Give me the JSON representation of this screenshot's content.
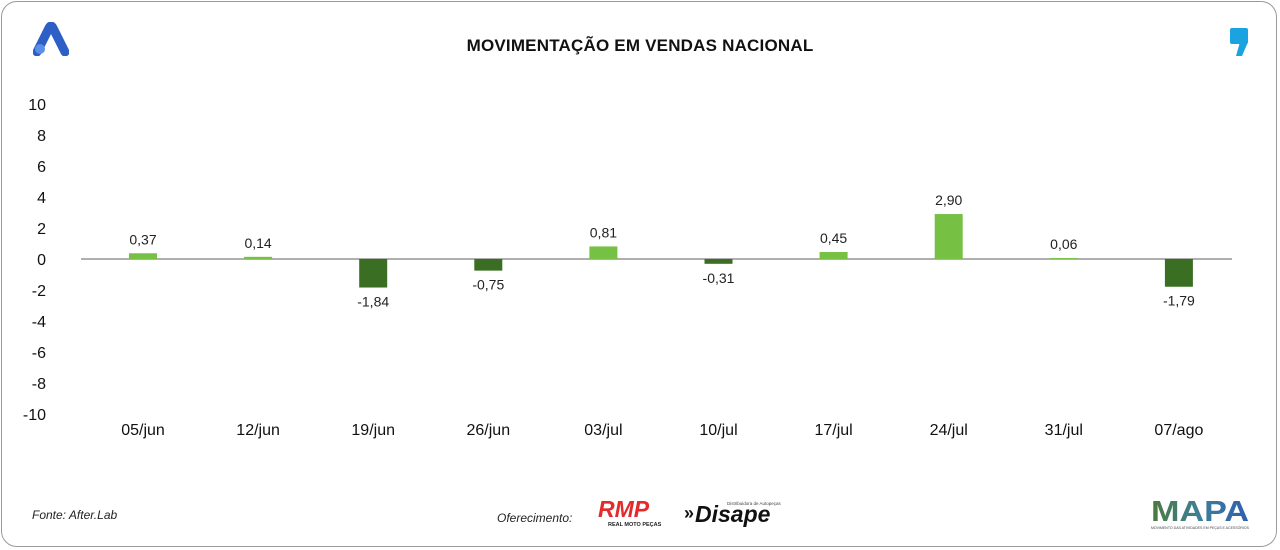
{
  "title": "MOVIMENTAÇÃO EM VENDAS NACIONAL",
  "source": "Fonte: After.Lab",
  "sponsor_label": "Oferecimento:",
  "logos": {
    "rmp": {
      "text": "RMP",
      "subtext": "REAL MOTO PEÇAS",
      "color": "#e32b2b"
    },
    "disape": {
      "text": "Disape",
      "subtext": "Distribuidora de Autopeças",
      "prefix": "»"
    },
    "mapa": {
      "text": "MAPA",
      "subtext": "MOVIMENTO DAS ATIVIDADES EM PEÇAS E ACESSÓRIOS"
    }
  },
  "colors": {
    "positive": "#76c043",
    "negative": "#3a6e22",
    "zero_line": "#7f7f7f",
    "brand_blue": "#2d5fc7",
    "comma_blue": "#1aa3e0"
  },
  "chart_data": {
    "type": "bar",
    "categories": [
      "05/jun",
      "12/jun",
      "19/jun",
      "26/jun",
      "03/jul",
      "10/jul",
      "17/jul",
      "24/jul",
      "31/jul",
      "07/ago"
    ],
    "values": [
      0.37,
      0.14,
      -1.84,
      -0.75,
      0.81,
      -0.31,
      0.45,
      2.9,
      0.06,
      -1.79
    ],
    "value_labels": [
      "0,37",
      "0,14",
      "-1,84",
      "-0,75",
      "0,81",
      "-0,31",
      "0,45",
      "2,90",
      "0,06",
      "-1,79"
    ],
    "y_ticks": [
      "10",
      "8",
      "6",
      "4",
      "2",
      "0",
      "-2",
      "-4",
      "-6",
      "-8",
      "-10"
    ],
    "ylim": [
      -10,
      10
    ],
    "grid": false,
    "legend": false
  }
}
